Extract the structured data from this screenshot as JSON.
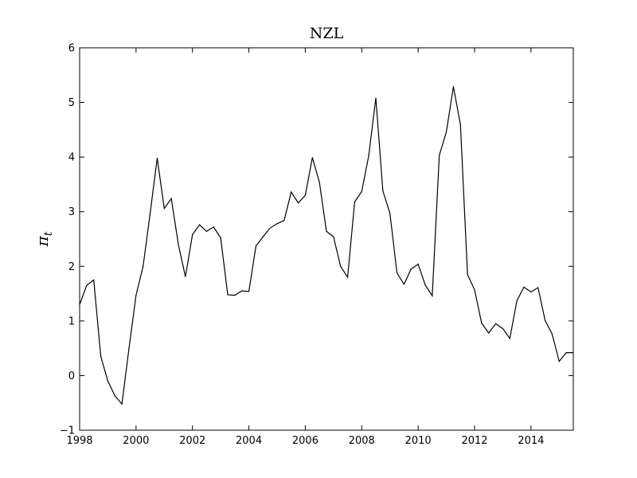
{
  "chart_data": {
    "type": "line",
    "title": "NZL",
    "xlabel": "",
    "ylabel": "π",
    "ylabel_subscript": "t",
    "xlim": [
      1998,
      2015.5
    ],
    "ylim": [
      -1,
      6
    ],
    "xticks": [
      1998,
      2000,
      2002,
      2004,
      2006,
      2008,
      2010,
      2012,
      2014
    ],
    "yticks": [
      -1,
      0,
      1,
      2,
      3,
      4,
      5,
      6
    ],
    "grid": false,
    "series": [
      {
        "color": "#000000",
        "x": [
          1998.0,
          1998.25,
          1998.5,
          1998.75,
          1999.0,
          1999.25,
          1999.5,
          1999.75,
          2000.0,
          2000.25,
          2000.5,
          2000.75,
          2001.0,
          2001.25,
          2001.5,
          2001.75,
          2002.0,
          2002.25,
          2002.5,
          2002.75,
          2003.0,
          2003.25,
          2003.5,
          2003.75,
          2004.0,
          2004.25,
          2004.5,
          2004.75,
          2005.0,
          2005.25,
          2005.5,
          2005.75,
          2006.0,
          2006.25,
          2006.5,
          2006.75,
          2007.0,
          2007.25,
          2007.5,
          2007.75,
          2008.0,
          2008.25,
          2008.5,
          2008.75,
          2009.0,
          2009.25,
          2009.5,
          2009.75,
          2010.0,
          2010.25,
          2010.5,
          2010.75,
          2011.0,
          2011.25,
          2011.5,
          2011.75,
          2012.0,
          2012.25,
          2012.5,
          2012.75,
          2013.0,
          2013.25,
          2013.5,
          2013.75,
          2014.0,
          2014.25,
          2014.5,
          2014.75,
          2015.0,
          2015.25,
          2015.5
        ],
        "values": [
          1.3,
          1.65,
          1.75,
          0.35,
          -0.1,
          -0.37,
          -0.52,
          0.5,
          1.47,
          2.0,
          2.97,
          3.98,
          3.06,
          3.24,
          2.4,
          1.81,
          2.58,
          2.76,
          2.64,
          2.72,
          2.52,
          1.48,
          1.47,
          1.55,
          1.54,
          2.37,
          2.54,
          2.7,
          2.78,
          2.84,
          3.36,
          3.16,
          3.3,
          3.99,
          3.54,
          2.64,
          2.54,
          2.0,
          1.8,
          3.18,
          3.37,
          4.03,
          5.08,
          3.38,
          2.97,
          1.88,
          1.67,
          1.95,
          2.04,
          1.66,
          1.46,
          4.03,
          4.46,
          5.29,
          4.59,
          1.85,
          1.57,
          0.96,
          0.78,
          0.95,
          0.86,
          0.68,
          1.37,
          1.62,
          1.53,
          1.61,
          1.01,
          0.76,
          0.26,
          0.42,
          0.42
        ]
      }
    ]
  }
}
